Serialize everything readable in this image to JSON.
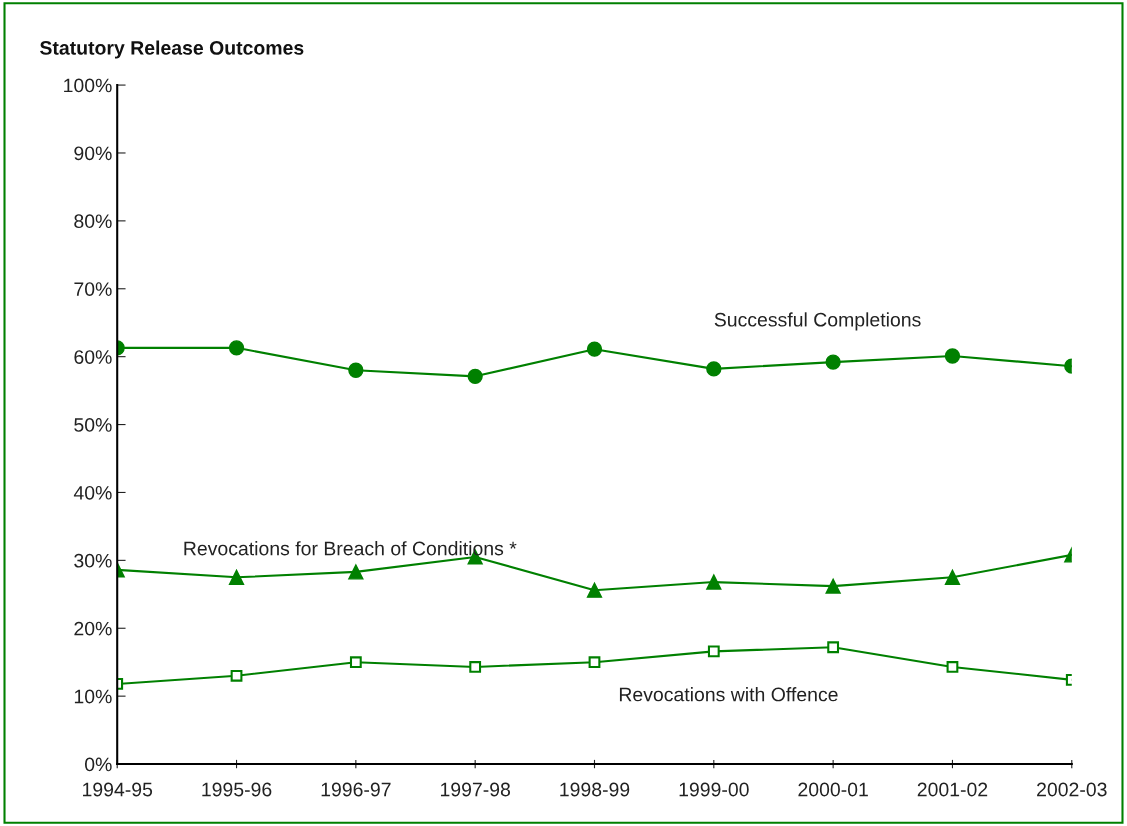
{
  "chart_data": {
    "type": "line",
    "title": "Statutory Release Outcomes",
    "categories": [
      "1994-95",
      "1995-96",
      "1996-97",
      "1997-98",
      "1998-99",
      "1999-00",
      "2000-01",
      "2001-02",
      "2002-03"
    ],
    "series": [
      {
        "name": "Successful Completions",
        "color": "#008000",
        "marker": "circle",
        "values": [
          61.3,
          61.3,
          58.0,
          57.1,
          61.1,
          58.2,
          59.2,
          60.1,
          58.6
        ]
      },
      {
        "name": "Revocations for Breach of Conditions *",
        "color": "#008000",
        "marker": "triangle",
        "values": [
          28.6,
          27.5,
          28.3,
          30.5,
          25.6,
          26.8,
          26.2,
          27.5,
          30.8
        ]
      },
      {
        "name": "Revocations with Offence",
        "color": "#008000",
        "marker": "square",
        "values": [
          11.8,
          13.0,
          15.0,
          14.3,
          15.0,
          16.6,
          17.2,
          14.3,
          12.4
        ]
      }
    ],
    "ylim": [
      0,
      100
    ],
    "yticks": [
      {
        "value": 0,
        "label": "0%"
      },
      {
        "value": 10,
        "label": "10%"
      },
      {
        "value": 20,
        "label": "20%"
      },
      {
        "value": 30,
        "label": "30%"
      },
      {
        "value": 40,
        "label": "40%"
      },
      {
        "value": 50,
        "label": "50%"
      },
      {
        "value": 60,
        "label": "60%"
      },
      {
        "value": 70,
        "label": "70%"
      },
      {
        "value": 80,
        "label": "80%"
      },
      {
        "value": 90,
        "label": "90%"
      },
      {
        "value": 100,
        "label": "100%"
      }
    ],
    "grid": false,
    "legend": false,
    "line_style": "solid"
  }
}
